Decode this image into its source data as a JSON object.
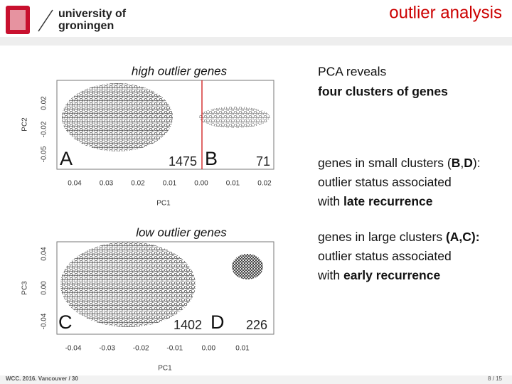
{
  "header": {
    "logo": [
      "university of",
      "groningen"
    ],
    "title": "outlier analysis"
  },
  "plots": [
    {
      "title": "high outlier genes",
      "y_label": "PC2",
      "x_label": "PC1",
      "y_ticks": [
        "0.02",
        "-0.02",
        "-0.05"
      ],
      "x_ticks": [
        "0.04",
        "0.03",
        "0.02",
        "0.01",
        "0.00",
        "0.01",
        "0.02"
      ],
      "clusters": [
        {
          "label": "A",
          "count": "1475"
        },
        {
          "label": "B",
          "count": "71"
        }
      ]
    },
    {
      "title": "low outlier genes",
      "y_label": "PC3",
      "x_label": "PC1",
      "y_ticks": [
        "0.04",
        "0.00",
        "-0.04"
      ],
      "x_ticks": [
        "-0.04",
        "-0.03",
        "-0.02",
        "-0.01",
        "0.00",
        "0.01"
      ],
      "clusters": [
        {
          "label": "C",
          "count": "1402"
        },
        {
          "label": "D",
          "count": "226"
        }
      ]
    }
  ],
  "text": {
    "intro": [
      "PCA reveals",
      "four clusters of genes"
    ],
    "small": [
      [
        "genes in small clusters (",
        "B",
        ",",
        "D",
        "):"
      ],
      [
        "outlier status associated"
      ],
      [
        "with ",
        "late recurrence"
      ]
    ],
    "large": [
      [
        "genes in large clusters ",
        "(A,C):"
      ],
      [
        "outlier status associated"
      ],
      [
        "with ",
        "early recurrence"
      ]
    ]
  },
  "footer": {
    "left": "WCC. 2016. Vancouver / 30",
    "page": "8 / 15"
  }
}
